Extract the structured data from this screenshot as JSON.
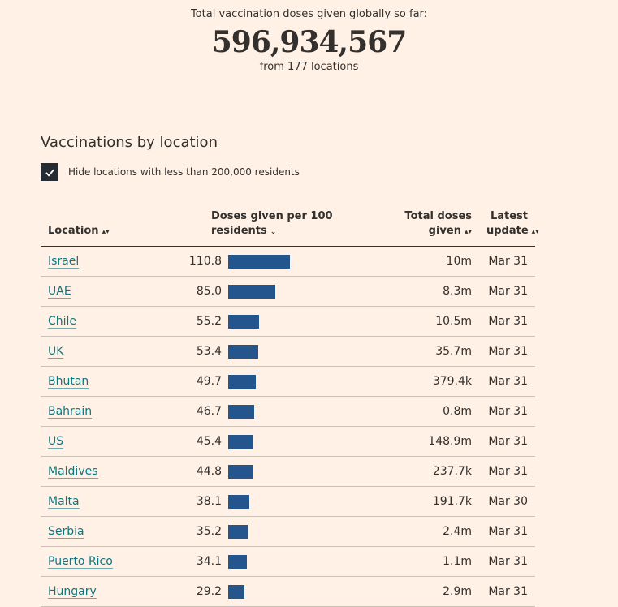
{
  "header": {
    "label": "Total vaccination doses given globally so far:",
    "value": "596,934,567",
    "sub": "from 177 locations"
  },
  "section": {
    "title": "Vaccinations by location",
    "filter_label": "Hide locations with less than 200,000 residents",
    "filter_checked": true
  },
  "table": {
    "columns": {
      "location": "Location",
      "doses_line1": "Doses given per 100",
      "doses_line2": "residents",
      "total_line1": "Total doses",
      "total_line2": "given",
      "update_line1": "Latest",
      "update_line2": "update"
    },
    "bar_color": "#24558c",
    "rows": [
      {
        "location": "Israel",
        "doses": "110.8",
        "doses_value": 110.8,
        "total": "10m",
        "date": "Mar 31"
      },
      {
        "location": "UAE",
        "doses": "85.0",
        "doses_value": 85.0,
        "total": "8.3m",
        "date": "Mar 31"
      },
      {
        "location": "Chile",
        "doses": "55.2",
        "doses_value": 55.2,
        "total": "10.5m",
        "date": "Mar 31"
      },
      {
        "location": "UK",
        "doses": "53.4",
        "doses_value": 53.4,
        "total": "35.7m",
        "date": "Mar 31"
      },
      {
        "location": "Bhutan",
        "doses": "49.7",
        "doses_value": 49.7,
        "total": "379.4k",
        "date": "Mar 31"
      },
      {
        "location": "Bahrain",
        "doses": "46.7",
        "doses_value": 46.7,
        "total": "0.8m",
        "date": "Mar 31"
      },
      {
        "location": "US",
        "doses": "45.4",
        "doses_value": 45.4,
        "total": "148.9m",
        "date": "Mar 31"
      },
      {
        "location": "Maldives",
        "doses": "44.8",
        "doses_value": 44.8,
        "total": "237.7k",
        "date": "Mar 31"
      },
      {
        "location": "Malta",
        "doses": "38.1",
        "doses_value": 38.1,
        "total": "191.7k",
        "date": "Mar 30"
      },
      {
        "location": "Serbia",
        "doses": "35.2",
        "doses_value": 35.2,
        "total": "2.4m",
        "date": "Mar 31"
      },
      {
        "location": "Puerto Rico",
        "doses": "34.1",
        "doses_value": 34.1,
        "total": "1.1m",
        "date": "Mar 31"
      },
      {
        "location": "Hungary",
        "doses": "29.2",
        "doses_value": 29.2,
        "total": "2.9m",
        "date": "Mar 31"
      }
    ]
  }
}
